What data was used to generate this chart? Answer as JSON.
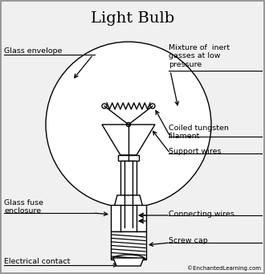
{
  "title": "Light Bulb",
  "title_fontsize": 14,
  "bg_color": "#f0f0f0",
  "labels": {
    "glass_envelope": "Glass envelope",
    "mixture": "Mixture of  inert\ngasses at low\npressure",
    "coiled": "Coiled tungsten\nfilament",
    "support": "Support wires",
    "glass_fuse": "Glass fuse\nenclosure",
    "connecting": "Connecting wires",
    "screw": "Screw cap",
    "electrical": "Electrical contact",
    "copyright": "©EnchantedLearning.com"
  },
  "border_color": "#aaaaaa",
  "line_color": "#000000",
  "white_color": "#ffffff"
}
